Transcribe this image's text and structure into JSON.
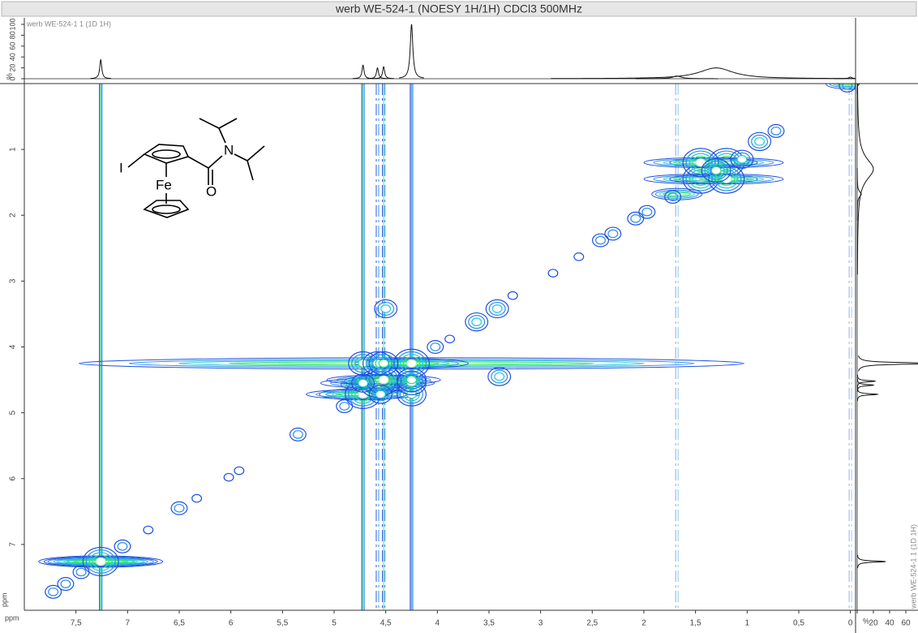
{
  "chart_data": {
    "type": "contour",
    "title": "werb WE-524-1 (NOESY 1H/1H) CDCl3 500MHz",
    "x_label": "ppm",
    "y_label": "ppm",
    "xlim": [
      8.0,
      -0.05
    ],
    "ylim": [
      0,
      8.0
    ],
    "xticks": [
      {
        "value": 7.5,
        "label": "7,5"
      },
      7,
      {
        "value": 6.5,
        "label": "6,5"
      },
      6,
      {
        "value": 5.5,
        "label": "5,5"
      },
      5,
      {
        "value": 4.5,
        "label": "4,5"
      },
      4,
      {
        "value": 3.5,
        "label": "3,5"
      },
      3,
      {
        "value": 2.5,
        "label": "2,5"
      },
      2,
      {
        "value": 1.5,
        "label": "1,5"
      },
      1,
      {
        "value": 0.5,
        "label": "0,5"
      },
      0
    ],
    "yticks": [
      1,
      2,
      3,
      4,
      5,
      6,
      7
    ],
    "projection": {
      "name": "werb WE-524-1 1 (1D 1H)",
      "unit": "%",
      "top_lim": [
        0,
        100
      ],
      "top_ticks": [
        0,
        20,
        40,
        60,
        80,
        100
      ],
      "side_lim": [
        0,
        75
      ],
      "side_ticks": [
        0,
        20,
        40,
        60
      ],
      "positions": [
        7.26,
        4.72,
        4.58,
        4.52,
        4.25,
        1.68,
        1.3,
        0.0
      ],
      "heights": [
        35,
        25,
        20,
        22,
        100,
        5,
        20,
        3
      ],
      "widths": [
        0.012,
        0.012,
        0.012,
        0.012,
        0.015,
        0.05,
        0.2,
        0.02
      ]
    },
    "cross_peaks": {
      "x": [
        7.72,
        7.6,
        7.45,
        7.26,
        7.05,
        6.8,
        6.5,
        6.33,
        6.02,
        5.92,
        5.35,
        4.9,
        4.72,
        4.58,
        4.52,
        4.25,
        4.02,
        3.88,
        3.62,
        3.42,
        3.27,
        2.88,
        2.63,
        2.42,
        2.3,
        2.08,
        1.97,
        1.72,
        1.45,
        1.2,
        0.88,
        0.72,
        0.03,
        4.5,
        3.4,
        1.2,
        1.45,
        4.72,
        4.25,
        4.58,
        4.52,
        4.25,
        4.25,
        4.72,
        4.55,
        1.05,
        1.3
      ],
      "y": [
        7.72,
        7.6,
        7.42,
        7.26,
        7.03,
        6.78,
        6.45,
        6.3,
        5.98,
        5.88,
        5.33,
        4.9,
        4.72,
        4.55,
        4.5,
        4.25,
        4.0,
        3.88,
        3.62,
        3.42,
        3.22,
        2.88,
        2.63,
        2.38,
        2.28,
        2.05,
        1.95,
        1.72,
        1.45,
        1.2,
        0.88,
        0.72,
        0.03,
        3.42,
        4.45,
        1.45,
        1.2,
        4.25,
        4.72,
        4.25,
        4.25,
        4.55,
        4.5,
        4.55,
        4.72,
        1.15,
        1.32
      ],
      "levels": [
        2,
        2,
        2,
        5,
        2,
        1,
        2,
        1,
        1,
        1,
        2,
        2,
        5,
        5,
        5,
        5,
        2,
        1,
        3,
        3,
        1,
        1,
        1,
        2,
        2,
        2,
        2,
        2,
        5,
        5,
        3,
        2,
        2,
        3,
        3,
        5,
        5,
        4,
        4,
        4,
        4,
        4,
        4,
        3,
        3,
        3,
        4
      ]
    },
    "colors": [
      "#1f4fe0",
      "#2a8fe8",
      "#22c9d0",
      "#30e07a",
      "#b8f7b0"
    ],
    "structure_labels": [
      "I",
      "N",
      "O",
      "Fe"
    ]
  }
}
